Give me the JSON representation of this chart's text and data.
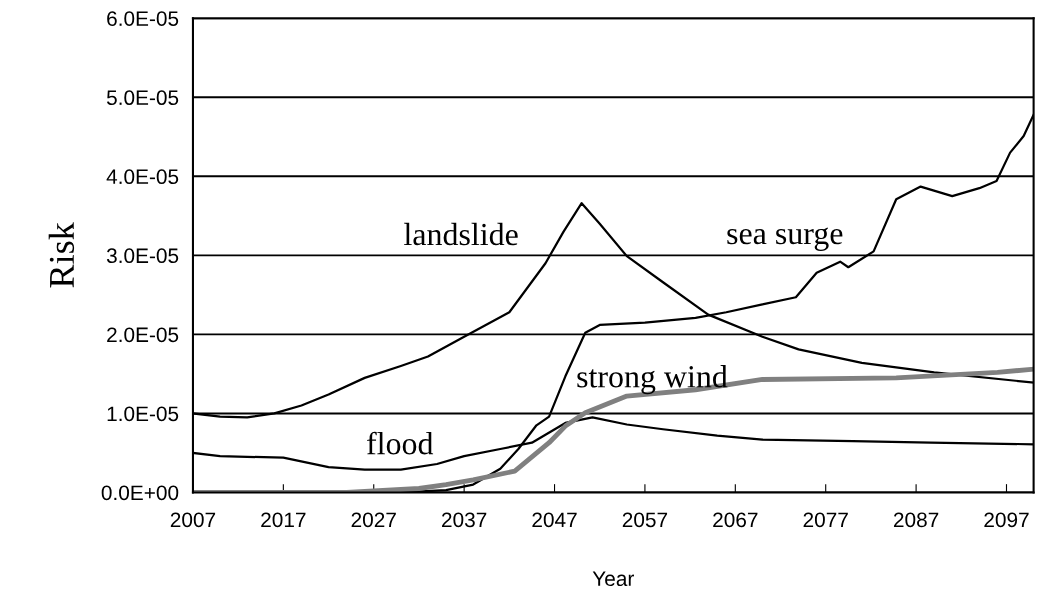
{
  "chart_data": {
    "type": "line",
    "xlabel": "Year",
    "ylabel": "Risk",
    "xlim": [
      2007,
      2100
    ],
    "xticks": [
      2007,
      2017,
      2027,
      2037,
      2047,
      2057,
      2067,
      2077,
      2087,
      2097
    ],
    "ylim": [
      0,
      6e-05
    ],
    "yticks": [
      {
        "value": 0,
        "label": "0.0E+00"
      },
      {
        "value": 1e-05,
        "label": "1.0E-05"
      },
      {
        "value": 2e-05,
        "label": "2.0E-05"
      },
      {
        "value": 3e-05,
        "label": "3.0E-05"
      },
      {
        "value": 4e-05,
        "label": "4.0E-05"
      },
      {
        "value": 5e-05,
        "label": "5.0E-05"
      },
      {
        "value": 6e-05,
        "label": "6.0E-05"
      }
    ],
    "grid": "y",
    "marker": "none",
    "line_style": "solid",
    "series": [
      {
        "name": "landslide",
        "color": "#000000",
        "x": [
          2007,
          2010,
          2013,
          2016,
          2019,
          2022,
          2026,
          2030,
          2033,
          2037,
          2042,
          2046,
          2048,
          2050,
          2052,
          2055,
          2059,
          2064,
          2070,
          2074,
          2081,
          2089,
          2100
        ],
        "values": [
          1e-05,
          9.6e-06,
          9.5e-06,
          1e-05,
          1.1e-05,
          1.24e-05,
          1.45e-05,
          1.6e-05,
          1.72e-05,
          1.97e-05,
          2.28e-05,
          2.9e-05,
          3.3e-05,
          3.66e-05,
          3.4e-05,
          2.99e-05,
          2.66e-05,
          2.25e-05,
          1.97e-05,
          1.81e-05,
          1.64e-05,
          1.52e-05,
          1.39e-05
        ]
      },
      {
        "name": "sea surge",
        "color": "#000000",
        "x": [
          2007,
          2030,
          2035,
          2038,
          2041,
          2043,
          2045,
          2046.4,
          2048.2,
          2050.4,
          2052,
          2057,
          2062.6,
          2066,
          2070,
          2073.7,
          2076,
          2078.6,
          2079.5,
          2082.3,
          2084.8,
          2087.5,
          2091,
          2094,
          2095.9,
          2097.4,
          2098.9,
          2100
        ],
        "values": [
          0,
          0,
          3e-07,
          1e-06,
          3e-06,
          5.5e-06,
          8.5e-06,
          9.6e-06,
          1.47e-05,
          2.02e-05,
          2.12e-05,
          2.15e-05,
          2.21e-05,
          2.28e-05,
          2.38e-05,
          2.47e-05,
          2.78e-05,
          2.92e-05,
          2.85e-05,
          3.05e-05,
          3.71e-05,
          3.87e-05,
          3.75e-05,
          3.85e-05,
          3.94e-05,
          4.3e-05,
          4.51e-05,
          4.78e-05
        ]
      },
      {
        "name": "flood",
        "color": "#000000",
        "x": [
          2007,
          2010,
          2017,
          2022,
          2026,
          2030,
          2034,
          2037,
          2041,
          2044.5,
          2048.2,
          2051.2,
          2055,
          2059,
          2065,
          2070,
          2080,
          2088.6,
          2100
        ],
        "values": [
          5e-06,
          4.6e-06,
          4.4e-06,
          3.2e-06,
          2.9e-06,
          2.9e-06,
          3.6e-06,
          4.6e-06,
          5.5e-06,
          6.3e-06,
          8.8e-06,
          9.5e-06,
          8.6e-06,
          8e-06,
          7.2e-06,
          6.7e-06,
          6.5e-06,
          6.3e-06,
          6.1e-06
        ]
      },
      {
        "name": "strong wind",
        "color": "#808080",
        "x": [
          2007,
          2024,
          2032,
          2035,
          2038,
          2042.6,
          2046.4,
          2048.2,
          2050.4,
          2055,
          2062.6,
          2070,
          2084.8,
          2096,
          2100
        ],
        "values": [
          0,
          0,
          5e-07,
          1e-06,
          1.6e-06,
          2.7e-06,
          6.3e-06,
          8.4e-06,
          1.01e-05,
          1.22e-05,
          1.3e-05,
          1.43e-05,
          1.45e-05,
          1.52e-05,
          1.56e-05
        ]
      }
    ]
  }
}
